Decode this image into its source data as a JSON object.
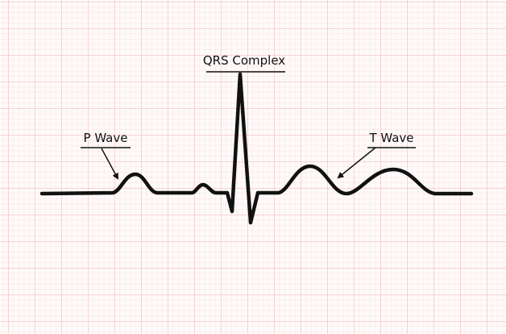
{
  "labels": {
    "p_wave": "P Wave",
    "qrs_complex": "QRS Complex",
    "t_wave": "T Wave"
  },
  "colors": {
    "background": "#fffafa",
    "grid_minor": "#f6d6d6",
    "grid_major": "#ecaeae",
    "trace": "#111111",
    "text": "#111111"
  }
}
